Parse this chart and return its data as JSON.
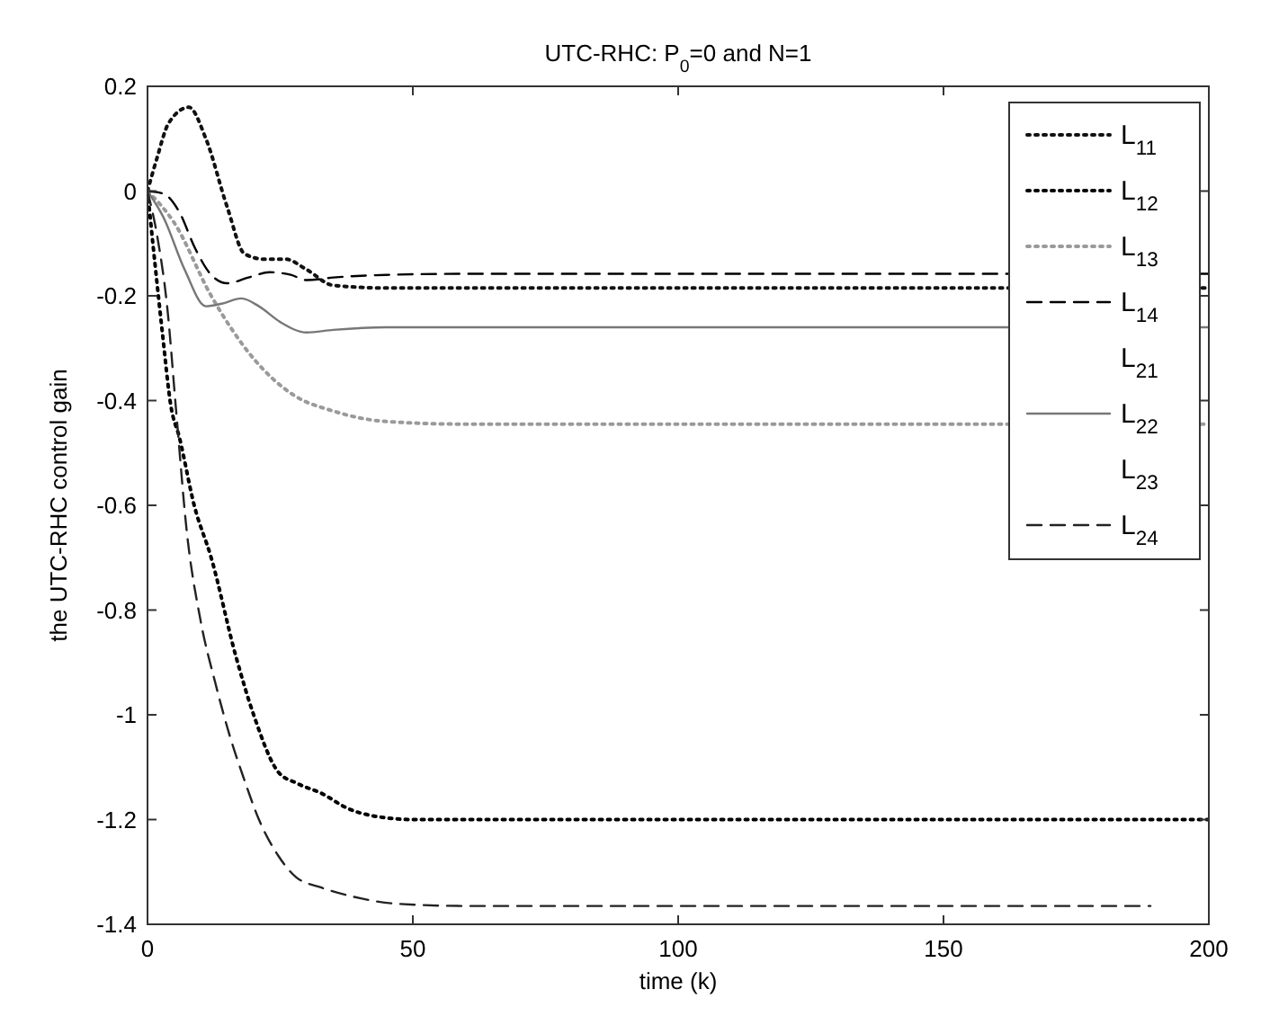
{
  "chart_data": {
    "type": "line",
    "title": "UTC-RHC: P$_{0}$=0 and N=1",
    "xlabel": "time (k)",
    "ylabel": "the UTC-RHC control gain",
    "xlim": [
      0,
      200
    ],
    "xticks": [
      0,
      50,
      100,
      150,
      200
    ],
    "ylim": [
      -1.4,
      0.2
    ],
    "yticks": [
      0.2,
      0,
      -0.2,
      -0.4,
      -0.6,
      -0.8,
      -1,
      -1.2,
      -1.4
    ],
    "grid": false,
    "legend": "top right",
    "series": [
      {
        "name": "L$_{11}$",
        "color": "#111111",
        "line_style": "dotted",
        "x": [
          0,
          1.7,
          4,
          7.8,
          11,
          15,
          18.3,
          22,
          26,
          30,
          35,
          45,
          60,
          100,
          150,
          200
        ],
        "values": [
          0,
          0.06,
          0.13,
          0.16,
          0.1,
          -0.03,
          -0.12,
          -0.13,
          -0.13,
          -0.15,
          -0.18,
          -0.185,
          -0.185,
          -0.185,
          -0.185,
          -0.185
        ]
      },
      {
        "name": "L$_{12}$",
        "color": "#000000",
        "line_style": "dotted",
        "x": [
          0,
          2.8,
          4.4,
          6,
          8.8,
          12,
          16.7,
          20,
          24.7,
          28,
          32.8,
          38,
          43.7,
          50,
          100,
          150,
          200
        ],
        "values": [
          0,
          -0.27,
          -0.41,
          -0.47,
          -0.6,
          -0.7,
          -0.89,
          -1.0,
          -1.11,
          -1.13,
          -1.15,
          -1.18,
          -1.195,
          -1.2,
          -1.2,
          -1.2,
          -1.2
        ]
      },
      {
        "name": "L$_{13}$",
        "color": "#9a9a9a",
        "line_style": "dotted",
        "x": [
          0,
          5,
          12,
          20,
          27.6,
          35,
          45,
          60,
          100,
          150,
          200
        ],
        "values": [
          0,
          -0.06,
          -0.2,
          -0.32,
          -0.39,
          -0.42,
          -0.44,
          -0.445,
          -0.445,
          -0.445,
          -0.445
        ]
      },
      {
        "name": "L$_{14}$",
        "color": "#000000",
        "line_style": "dashed",
        "x": [
          0,
          3,
          6,
          9,
          12,
          15,
          19,
          23,
          27,
          30,
          35,
          45,
          60,
          100,
          150,
          200
        ],
        "values": [
          0,
          -0.005,
          -0.04,
          -0.11,
          -0.16,
          -0.176,
          -0.165,
          -0.155,
          -0.16,
          -0.17,
          -0.165,
          -0.16,
          -0.158,
          -0.158,
          -0.158,
          -0.158
        ]
      },
      {
        "name": "L$_{21}$"
      },
      {
        "name": "L$_{22}$",
        "color": "#777777",
        "line_style": "solid",
        "x": [
          0,
          3,
          7,
          11,
          14,
          17.7,
          21,
          25,
          30,
          35,
          45,
          60,
          100,
          150,
          200
        ],
        "values": [
          0,
          -0.05,
          -0.15,
          -0.22,
          -0.215,
          -0.205,
          -0.22,
          -0.25,
          -0.27,
          -0.265,
          -0.26,
          -0.26,
          -0.26,
          -0.26,
          -0.26
        ]
      },
      {
        "name": "L$_{23}$"
      },
      {
        "name": "L$_{24}$",
        "color": "#222222",
        "line_style": "dashed",
        "x": [
          0,
          1.9,
          3.7,
          5.4,
          7.4,
          10,
          12.8,
          15.5,
          18.1,
          21,
          24.7,
          28,
          32.8,
          40,
          46,
          60,
          100,
          150,
          189
        ],
        "values": [
          0,
          -0.09,
          -0.22,
          -0.42,
          -0.65,
          -0.82,
          -0.94,
          -1.04,
          -1.12,
          -1.2,
          -1.27,
          -1.31,
          -1.33,
          -1.35,
          -1.36,
          -1.365,
          -1.365,
          -1.365,
          -1.365
        ]
      }
    ]
  }
}
